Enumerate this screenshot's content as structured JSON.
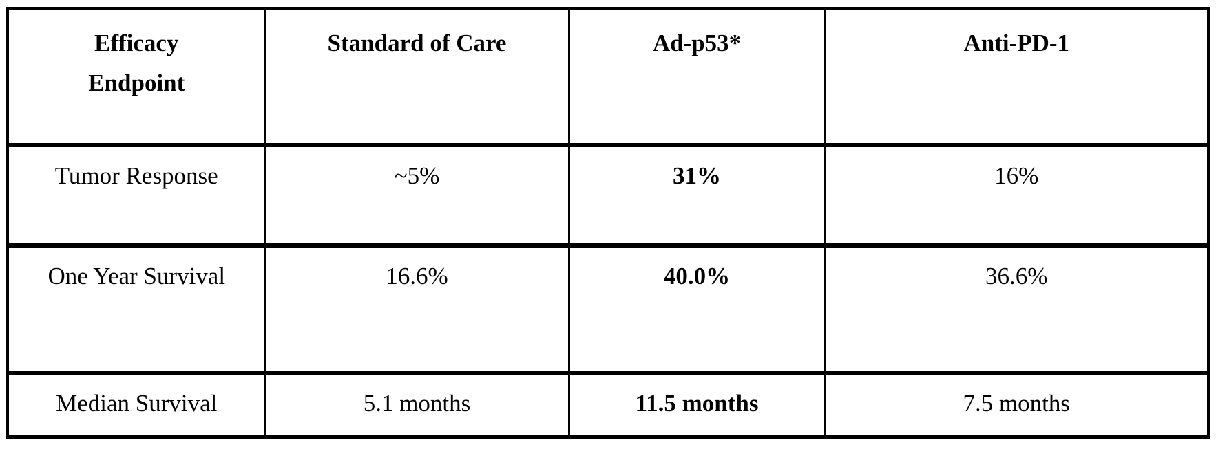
{
  "chart_data": {
    "type": "table",
    "columns": [
      "Efficacy Endpoint",
      "Standard of Care",
      "Ad-p53*",
      "Anti-PD-1"
    ],
    "rows": [
      [
        "Tumor Response",
        "~5%",
        "31%",
        "16%"
      ],
      [
        "One Year Survival",
        "16.6%",
        "40.0%",
        "36.6%"
      ],
      [
        "Median Survival",
        "5.1 months",
        "11.5 months",
        "7.5 months"
      ]
    ],
    "emphasized_column": "Ad-p53*",
    "colors": {
      "text": "#000000",
      "border": "#000000",
      "background": "#ffffff"
    }
  }
}
